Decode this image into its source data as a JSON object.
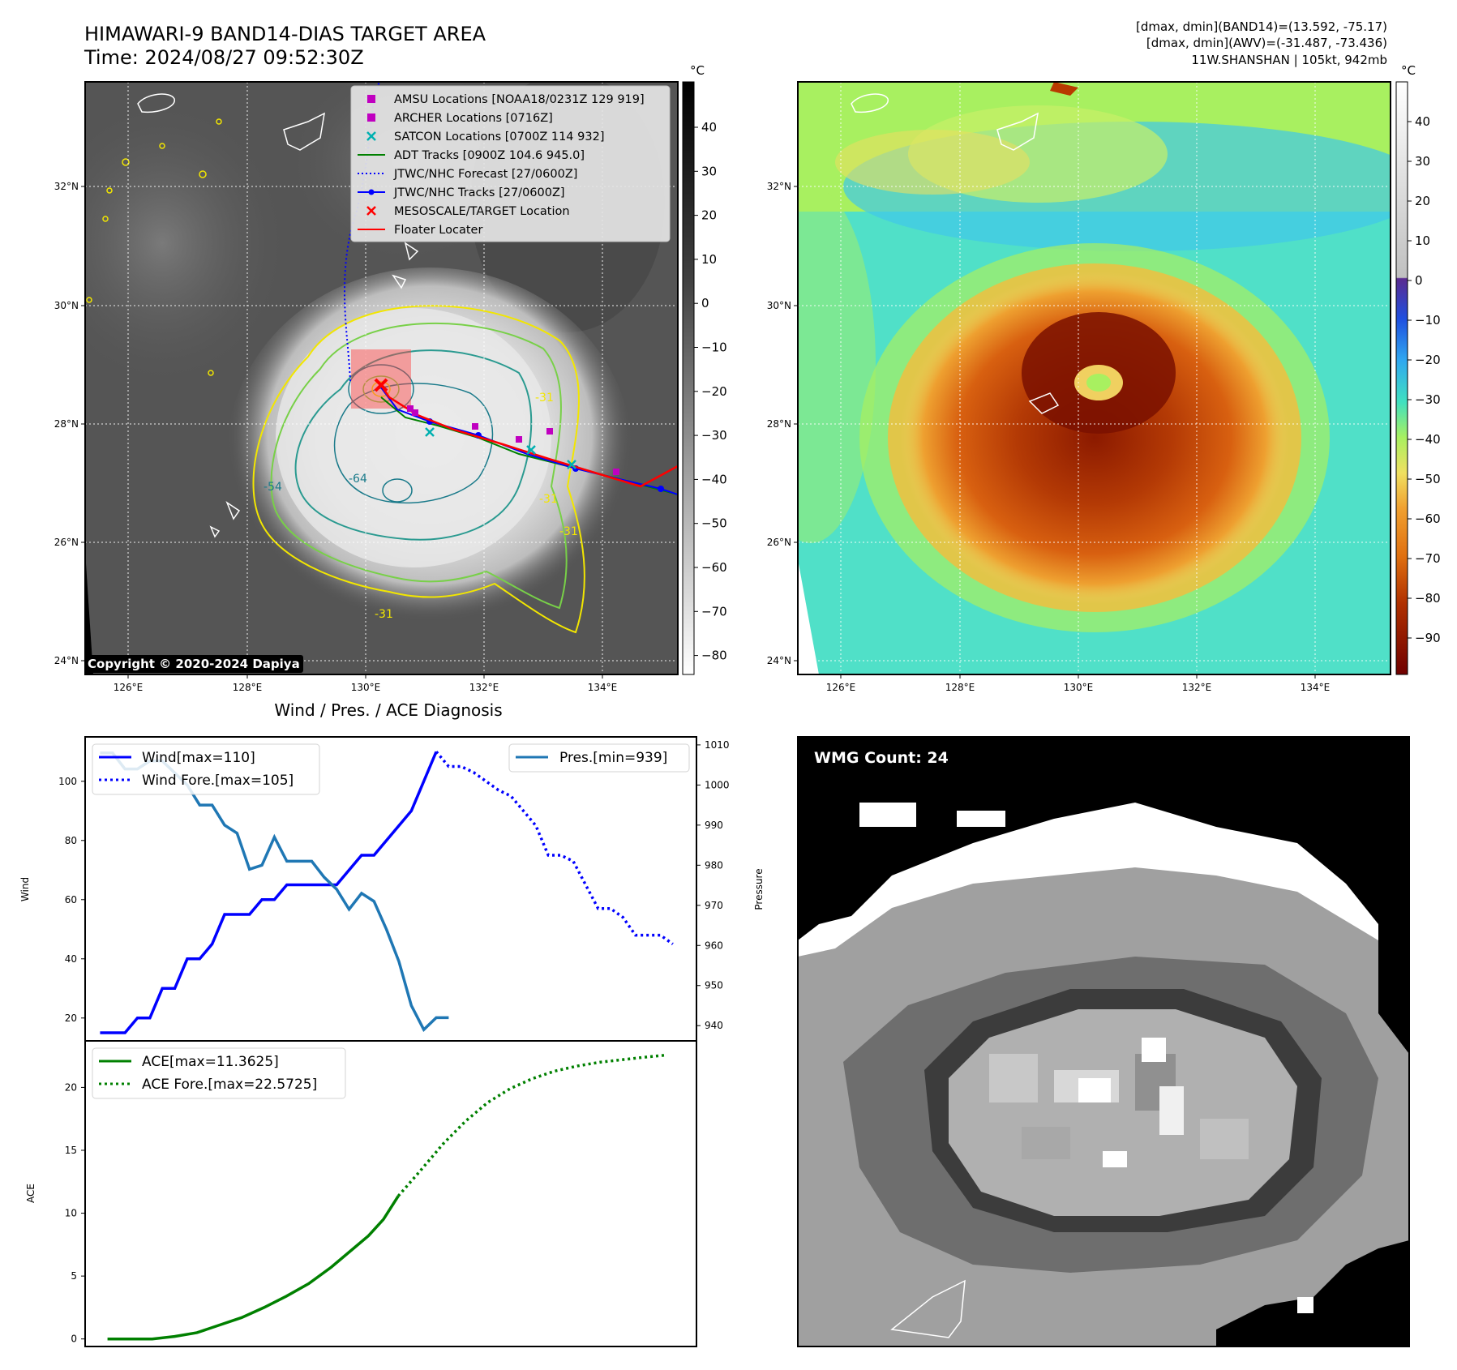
{
  "header": {
    "title_line1": "HIMAWARI-9 BAND14-DIAS TARGET AREA",
    "title_line2": "Time: 2024/08/27 09:52:30Z",
    "info_line1": "[dmax, dmin](BAND14)=(13.592, -75.17)",
    "info_line2": "[dmax, dmin](AWV)=(-31.487, -73.436)",
    "info_line3": "11W.SHANSHAN | 105kt, 942mb"
  },
  "map_left": {
    "unit": "°C",
    "lat_ticks": [
      "32°N",
      "30°N",
      "28°N",
      "26°N",
      "24°N"
    ],
    "lon_ticks": [
      "126°E",
      "128°E",
      "130°E",
      "132°E",
      "134°E"
    ],
    "colorbar_ticks": [
      "40",
      "30",
      "20",
      "10",
      "0",
      "−10",
      "−20",
      "−30",
      "−40",
      "−50",
      "−60",
      "−70",
      "−80"
    ],
    "copyright": "Copyright © 2020-2024 Dapiya",
    "legend": [
      {
        "label": "AMSU Locations [NOAA18/0231Z 129 919]",
        "color": "#c000c0",
        "marker": "square"
      },
      {
        "label": "ARCHER Locations [0716Z]",
        "color": "#c000c0",
        "marker": "square"
      },
      {
        "label": "SATCON Locations [0700Z 114 932]",
        "color": "#00b0b0",
        "marker": "x"
      },
      {
        "label": "ADT Tracks [0900Z 104.6 945.0]",
        "color": "#008000",
        "marker": "line"
      },
      {
        "label": "JTWC/NHC Forecast [27/0600Z]",
        "color": "#0000ff",
        "marker": "dotted"
      },
      {
        "label": "JTWC/NHC Tracks [27/0600Z]",
        "color": "#0000ff",
        "marker": "line-dot"
      },
      {
        "label": "MESOSCALE/TARGET Location",
        "color": "#ff0000",
        "marker": "x"
      },
      {
        "label": "Floater Locater",
        "color": "#ff0000",
        "marker": "line"
      }
    ],
    "contour_labels": [
      "-54",
      "-64",
      "-31",
      "-31",
      "-31",
      "-31"
    ]
  },
  "map_right": {
    "unit": "°C",
    "lat_ticks": [
      "32°N",
      "30°N",
      "28°N",
      "26°N",
      "24°N"
    ],
    "lon_ticks": [
      "126°E",
      "128°E",
      "130°E",
      "132°E",
      "134°E"
    ],
    "colorbar_ticks": [
      "40",
      "30",
      "20",
      "10",
      "0",
      "−10",
      "−20",
      "−30",
      "−40",
      "−50",
      "−60",
      "−70",
      "−80",
      "−90"
    ]
  },
  "chart_data": [
    {
      "type": "line",
      "title": "Wind / Pres. / ACE Diagnosis",
      "ylabel": "Wind",
      "y2label": "Pressure",
      "ylim": [
        12,
        115
      ],
      "y2lim": [
        936,
        1012
      ],
      "yticks": [
        20,
        40,
        60,
        80,
        100
      ],
      "y2ticks": [
        940,
        950,
        960,
        970,
        980,
        990,
        1000,
        1010
      ],
      "series": [
        {
          "name": "Wind[max=110]",
          "axis": "left",
          "color": "#0000ff",
          "style": "solid",
          "x": [
            0,
            1,
            2,
            3,
            4,
            5,
            6,
            7,
            8,
            9,
            10,
            11,
            12,
            13,
            14,
            15,
            16,
            17,
            18,
            19,
            20,
            21,
            22,
            23,
            24,
            25,
            26,
            27
          ],
          "values": [
            15,
            15,
            15,
            20,
            20,
            30,
            30,
            40,
            40,
            45,
            55,
            55,
            55,
            60,
            60,
            65,
            65,
            65,
            65,
            65,
            70,
            75,
            75,
            80,
            85,
            90,
            100,
            110
          ]
        },
        {
          "name": "Wind Fore.[max=105]",
          "axis": "left",
          "color": "#0000ff",
          "style": "dotted",
          "x": [
            27,
            28,
            29,
            30,
            31,
            32,
            33,
            34,
            35,
            36,
            37,
            38,
            39,
            40,
            41,
            42,
            43,
            44,
            45,
            46
          ],
          "values": [
            110,
            105,
            105,
            103,
            100,
            97,
            95,
            90,
            85,
            75,
            75,
            73,
            65,
            57,
            57,
            54,
            48,
            48,
            48,
            45
          ]
        },
        {
          "name": "Pres.[min=939]",
          "axis": "right",
          "color": "#1f77b4",
          "style": "solid",
          "x": [
            0,
            1,
            2,
            3,
            4,
            5,
            6,
            7,
            8,
            9,
            10,
            11,
            12,
            13,
            14,
            15,
            16,
            17,
            18,
            19,
            20,
            21,
            22,
            23,
            24,
            25,
            26,
            27,
            28
          ],
          "values": [
            1008,
            1008,
            1004,
            1004,
            1006,
            1006,
            1003,
            1000,
            995,
            995,
            990,
            988,
            979,
            980,
            987,
            981,
            981,
            981,
            977,
            974,
            969,
            973,
            971,
            964,
            956,
            945,
            939,
            942,
            942
          ]
        }
      ]
    },
    {
      "type": "line",
      "ylabel": "ACE",
      "ylim": [
        -0.6,
        23.7
      ],
      "yticks": [
        0,
        5,
        10,
        15,
        20
      ],
      "series": [
        {
          "name": "ACE[max=11.3625]",
          "color": "#008000",
          "style": "solid",
          "x": [
            0,
            6,
            9,
            12,
            15,
            18,
            21,
            24,
            27,
            30,
            33,
            35,
            37,
            39
          ],
          "values": [
            0,
            0,
            0.2,
            0.5,
            1.1,
            1.7,
            2.5,
            3.4,
            4.4,
            5.7,
            7.2,
            8.2,
            9.5,
            11.3625
          ]
        },
        {
          "name": "ACE Fore.[max=22.5725]",
          "color": "#008000",
          "style": "dotted",
          "x": [
            39,
            42,
            45,
            48,
            51,
            54,
            57,
            60,
            63,
            66,
            69,
            72,
            75
          ],
          "values": [
            11.3625,
            13.4,
            15.5,
            17.3,
            18.8,
            19.9,
            20.7,
            21.3,
            21.7,
            22.0,
            22.2,
            22.4,
            22.5725
          ]
        }
      ]
    }
  ],
  "wmg": {
    "label": "WMG Count: 24"
  }
}
